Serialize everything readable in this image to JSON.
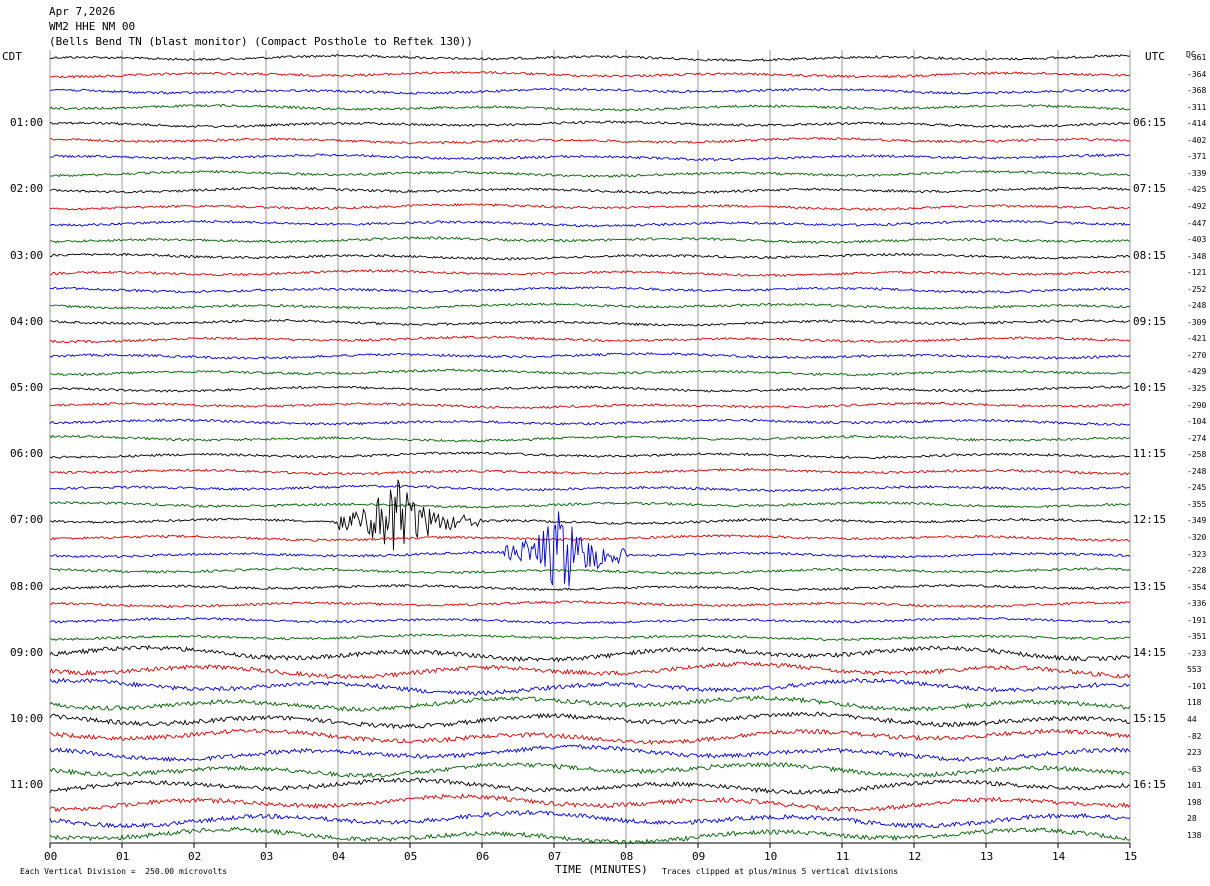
{
  "header": {
    "date": "Apr 7,2026",
    "station": "WM2 HHE NM 00",
    "location": "(Bells Bend TN (blast monitor) (Compact Posthole to Reftek 130))"
  },
  "left_zone_label": "CDT",
  "right_zone_label": "UTC",
  "dc_label": "DC",
  "left_hour_labels": [
    "01:00",
    "02:00",
    "03:00",
    "04:00",
    "05:00",
    "06:00",
    "07:00",
    "08:00",
    "09:00",
    "10:00",
    "11:00"
  ],
  "right_hour_labels": [
    "06:15",
    "07:15",
    "08:15",
    "09:15",
    "10:15",
    "11:15",
    "12:15",
    "13:15",
    "14:15",
    "15:15",
    "16:15"
  ],
  "footer": {
    "left_note": "Each Vertical Division =  250.00 microvolts",
    "x_axis_title": "TIME (MINUTES)",
    "right_note": "Traces clipped at plus/minus 5 vertical divisions"
  },
  "colors": {
    "trace_cycle": [
      "#000000",
      "#e00000",
      "#0000e0",
      "#006400"
    ],
    "grid": "#808080"
  },
  "chart_data": {
    "type": "line",
    "title": "",
    "xlabel": "TIME (MINUTES)",
    "ylabel": "",
    "x_ticks": [
      "00",
      "01",
      "02",
      "03",
      "04",
      "05",
      "06",
      "07",
      "08",
      "09",
      "10",
      "11",
      "12",
      "13",
      "14",
      "15"
    ],
    "xlim": [
      0,
      15
    ],
    "traces_per_hour": 4,
    "trace_count": 48,
    "dc_offsets": [
      "-361",
      "-364",
      "-368",
      "-311",
      "-414",
      "-402",
      "-371",
      "-339",
      "-425",
      "-492",
      "-447",
      "-403",
      "-348",
      "-121",
      "-252",
      "-248",
      "-309",
      "-421",
      "-270",
      "-429",
      "-325",
      "-290",
      "-104",
      "-274",
      "-258",
      "-248",
      "-245",
      "-355",
      "-349",
      "-320",
      "-323",
      "-228",
      "-354",
      "-336",
      "-191",
      "-351",
      "-233",
      "553",
      "-101",
      "118",
      "44",
      "-82",
      "223",
      "-63",
      "101",
      "198",
      "28",
      "138"
    ],
    "events": [
      {
        "trace": 28,
        "start_min": 4.0,
        "end_min": 6.0,
        "peak_min": 4.8
      },
      {
        "trace": 30,
        "start_min": 6.3,
        "end_min": 8.0,
        "peak_min": 7.1
      }
    ]
  }
}
